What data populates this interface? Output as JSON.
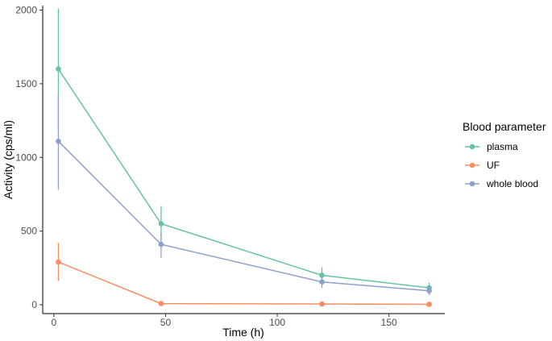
{
  "chart_data": {
    "type": "line",
    "xlabel": "Time (h)",
    "ylabel": "Activity (cps/ml)",
    "xlim": [
      -5,
      175
    ],
    "ylim": [
      -60,
      2030
    ],
    "x_ticks": [
      0,
      50,
      100,
      150
    ],
    "y_ticks": [
      0,
      500,
      1000,
      1500,
      2000
    ],
    "grid": false,
    "legend": {
      "title": "Blood parameter",
      "placement": "right"
    },
    "series": [
      {
        "name": "plasma",
        "color": "#66c2a5",
        "x": [
          2,
          48,
          120,
          168
        ],
        "values": [
          1600,
          550,
          200,
          115
        ],
        "error_low": [
          1190,
          430,
          150,
          80
        ],
        "error_high": [
          2010,
          670,
          255,
          150
        ]
      },
      {
        "name": "UF",
        "color": "#fc8d62",
        "x": [
          2,
          48,
          120,
          168
        ],
        "values": [
          290,
          8,
          5,
          3
        ],
        "error_low": [
          160,
          4,
          2,
          1
        ],
        "error_high": [
          420,
          12,
          8,
          5
        ]
      },
      {
        "name": "whole blood",
        "color": "#8da0cb",
        "x": [
          2,
          48,
          120,
          168
        ],
        "values": [
          1110,
          410,
          155,
          95
        ],
        "error_low": [
          780,
          320,
          115,
          65
        ],
        "error_high": [
          1430,
          500,
          200,
          125
        ]
      }
    ]
  }
}
